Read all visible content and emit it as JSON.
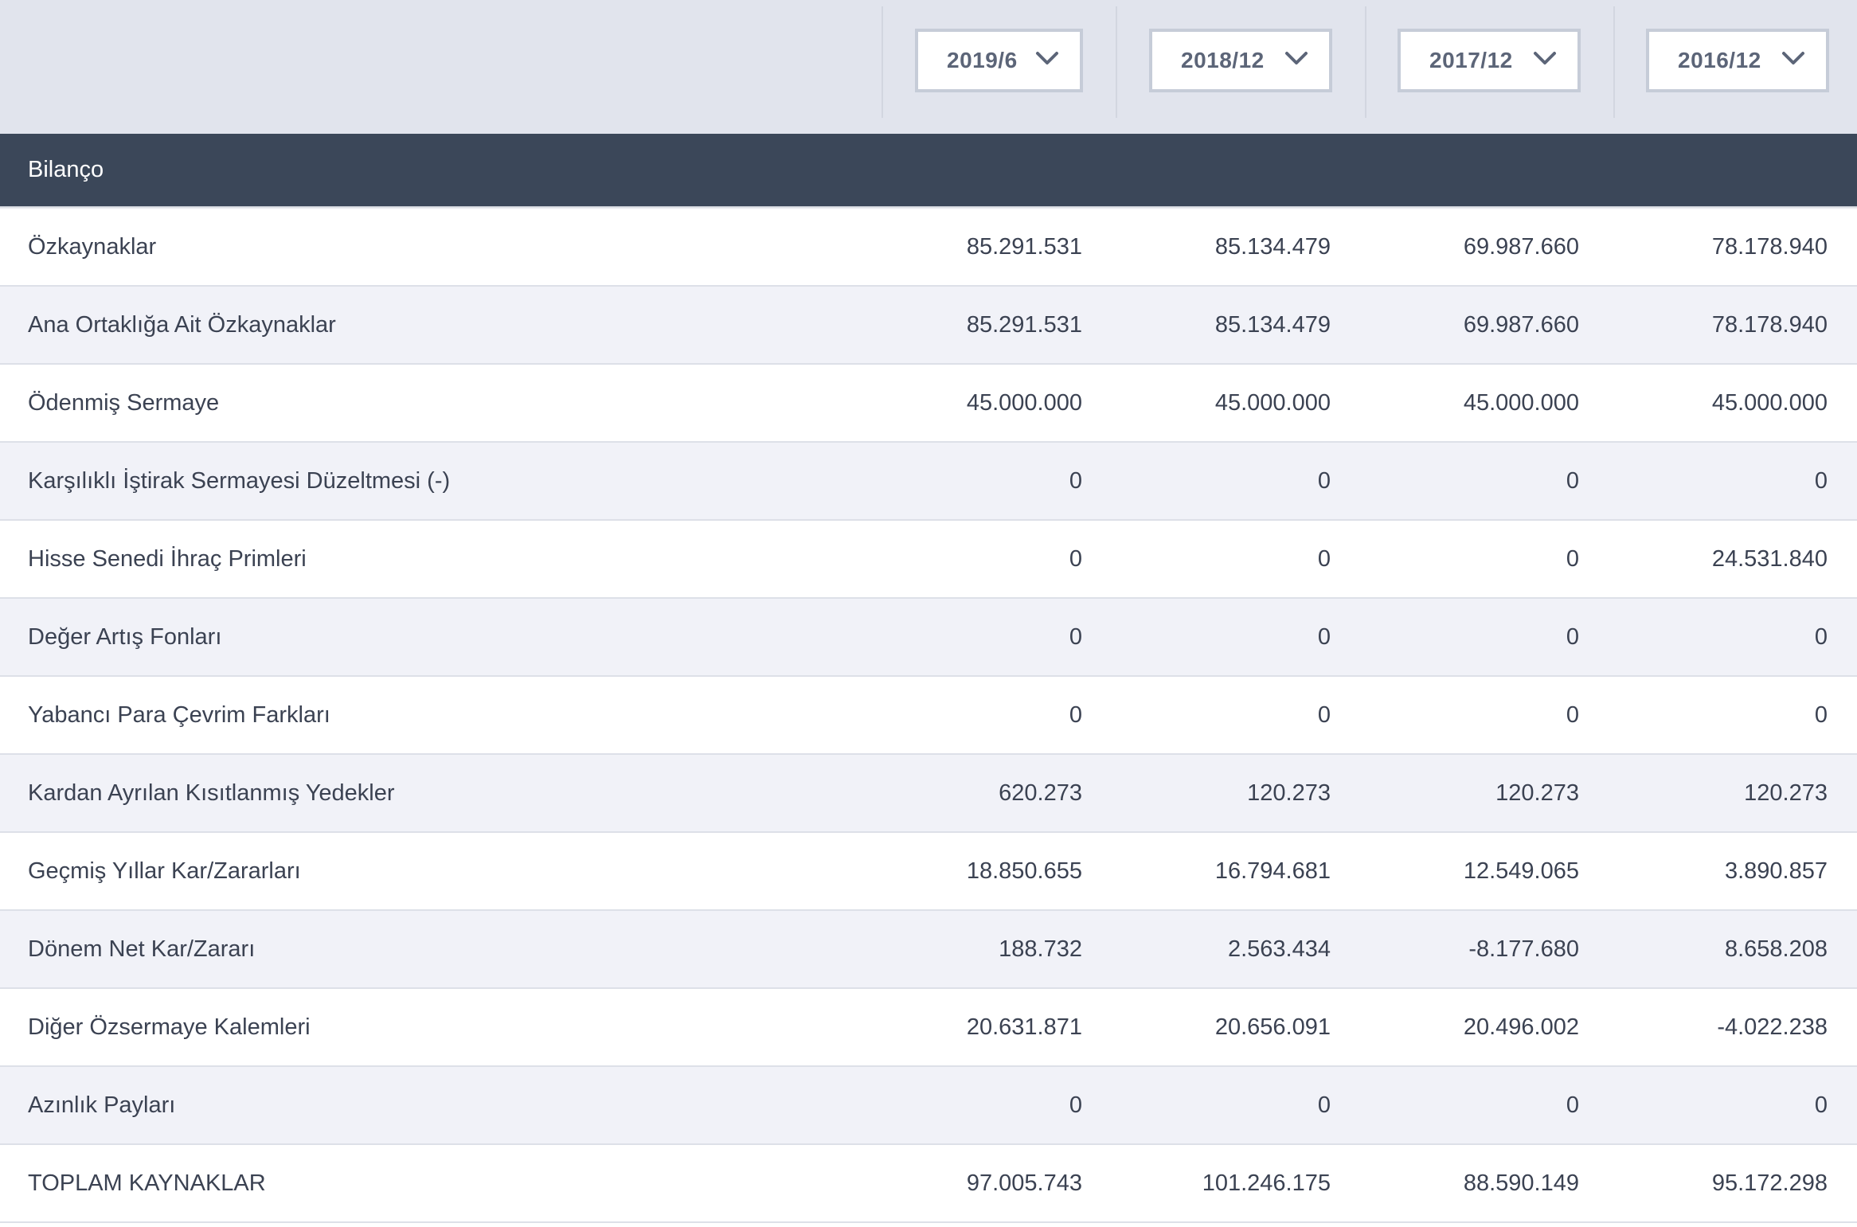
{
  "periods": [
    {
      "label": "2019/6"
    },
    {
      "label": "2018/12"
    },
    {
      "label": "2017/12"
    },
    {
      "label": "2016/12"
    }
  ],
  "section": {
    "title": "Bilanço"
  },
  "rows": [
    {
      "label": "Özkaynaklar",
      "values": [
        "85.291.531",
        "85.134.479",
        "69.987.660",
        "78.178.940"
      ]
    },
    {
      "label": "Ana Ortaklığa Ait Özkaynaklar",
      "values": [
        "85.291.531",
        "85.134.479",
        "69.987.660",
        "78.178.940"
      ]
    },
    {
      "label": "Ödenmiş Sermaye",
      "values": [
        "45.000.000",
        "45.000.000",
        "45.000.000",
        "45.000.000"
      ]
    },
    {
      "label": "Karşılıklı İştirak Sermayesi Düzeltmesi (-)",
      "values": [
        "0",
        "0",
        "0",
        "0"
      ]
    },
    {
      "label": "Hisse Senedi İhraç Primleri",
      "values": [
        "0",
        "0",
        "0",
        "24.531.840"
      ]
    },
    {
      "label": "Değer Artış Fonları",
      "values": [
        "0",
        "0",
        "0",
        "0"
      ]
    },
    {
      "label": "Yabancı Para Çevrim Farkları",
      "values": [
        "0",
        "0",
        "0",
        "0"
      ]
    },
    {
      "label": "Kardan Ayrılan Kısıtlanmış Yedekler",
      "values": [
        "620.273",
        "120.273",
        "120.273",
        "120.273"
      ]
    },
    {
      "label": "Geçmiş Yıllar Kar/Zararları",
      "values": [
        "18.850.655",
        "16.794.681",
        "12.549.065",
        "3.890.857"
      ]
    },
    {
      "label": "Dönem Net Kar/Zararı",
      "values": [
        "188.732",
        "2.563.434",
        "-8.177.680",
        "8.658.208"
      ]
    },
    {
      "label": "Diğer Özsermaye Kalemleri",
      "values": [
        "20.631.871",
        "20.656.091",
        "20.496.002",
        "-4.022.238"
      ]
    },
    {
      "label": "Azınlık Payları",
      "values": [
        "0",
        "0",
        "0",
        "0"
      ]
    },
    {
      "label": "TOPLAM KAYNAKLAR",
      "values": [
        "97.005.743",
        "101.246.175",
        "88.590.149",
        "95.172.298"
      ]
    }
  ],
  "icons": {
    "dropdown": "chevron-down-icon"
  },
  "colors": {
    "header_bg": "#e1e4ed",
    "section_bg": "#3b4759",
    "row_alt_bg": "#f1f2f8",
    "text": "#3b4252"
  }
}
